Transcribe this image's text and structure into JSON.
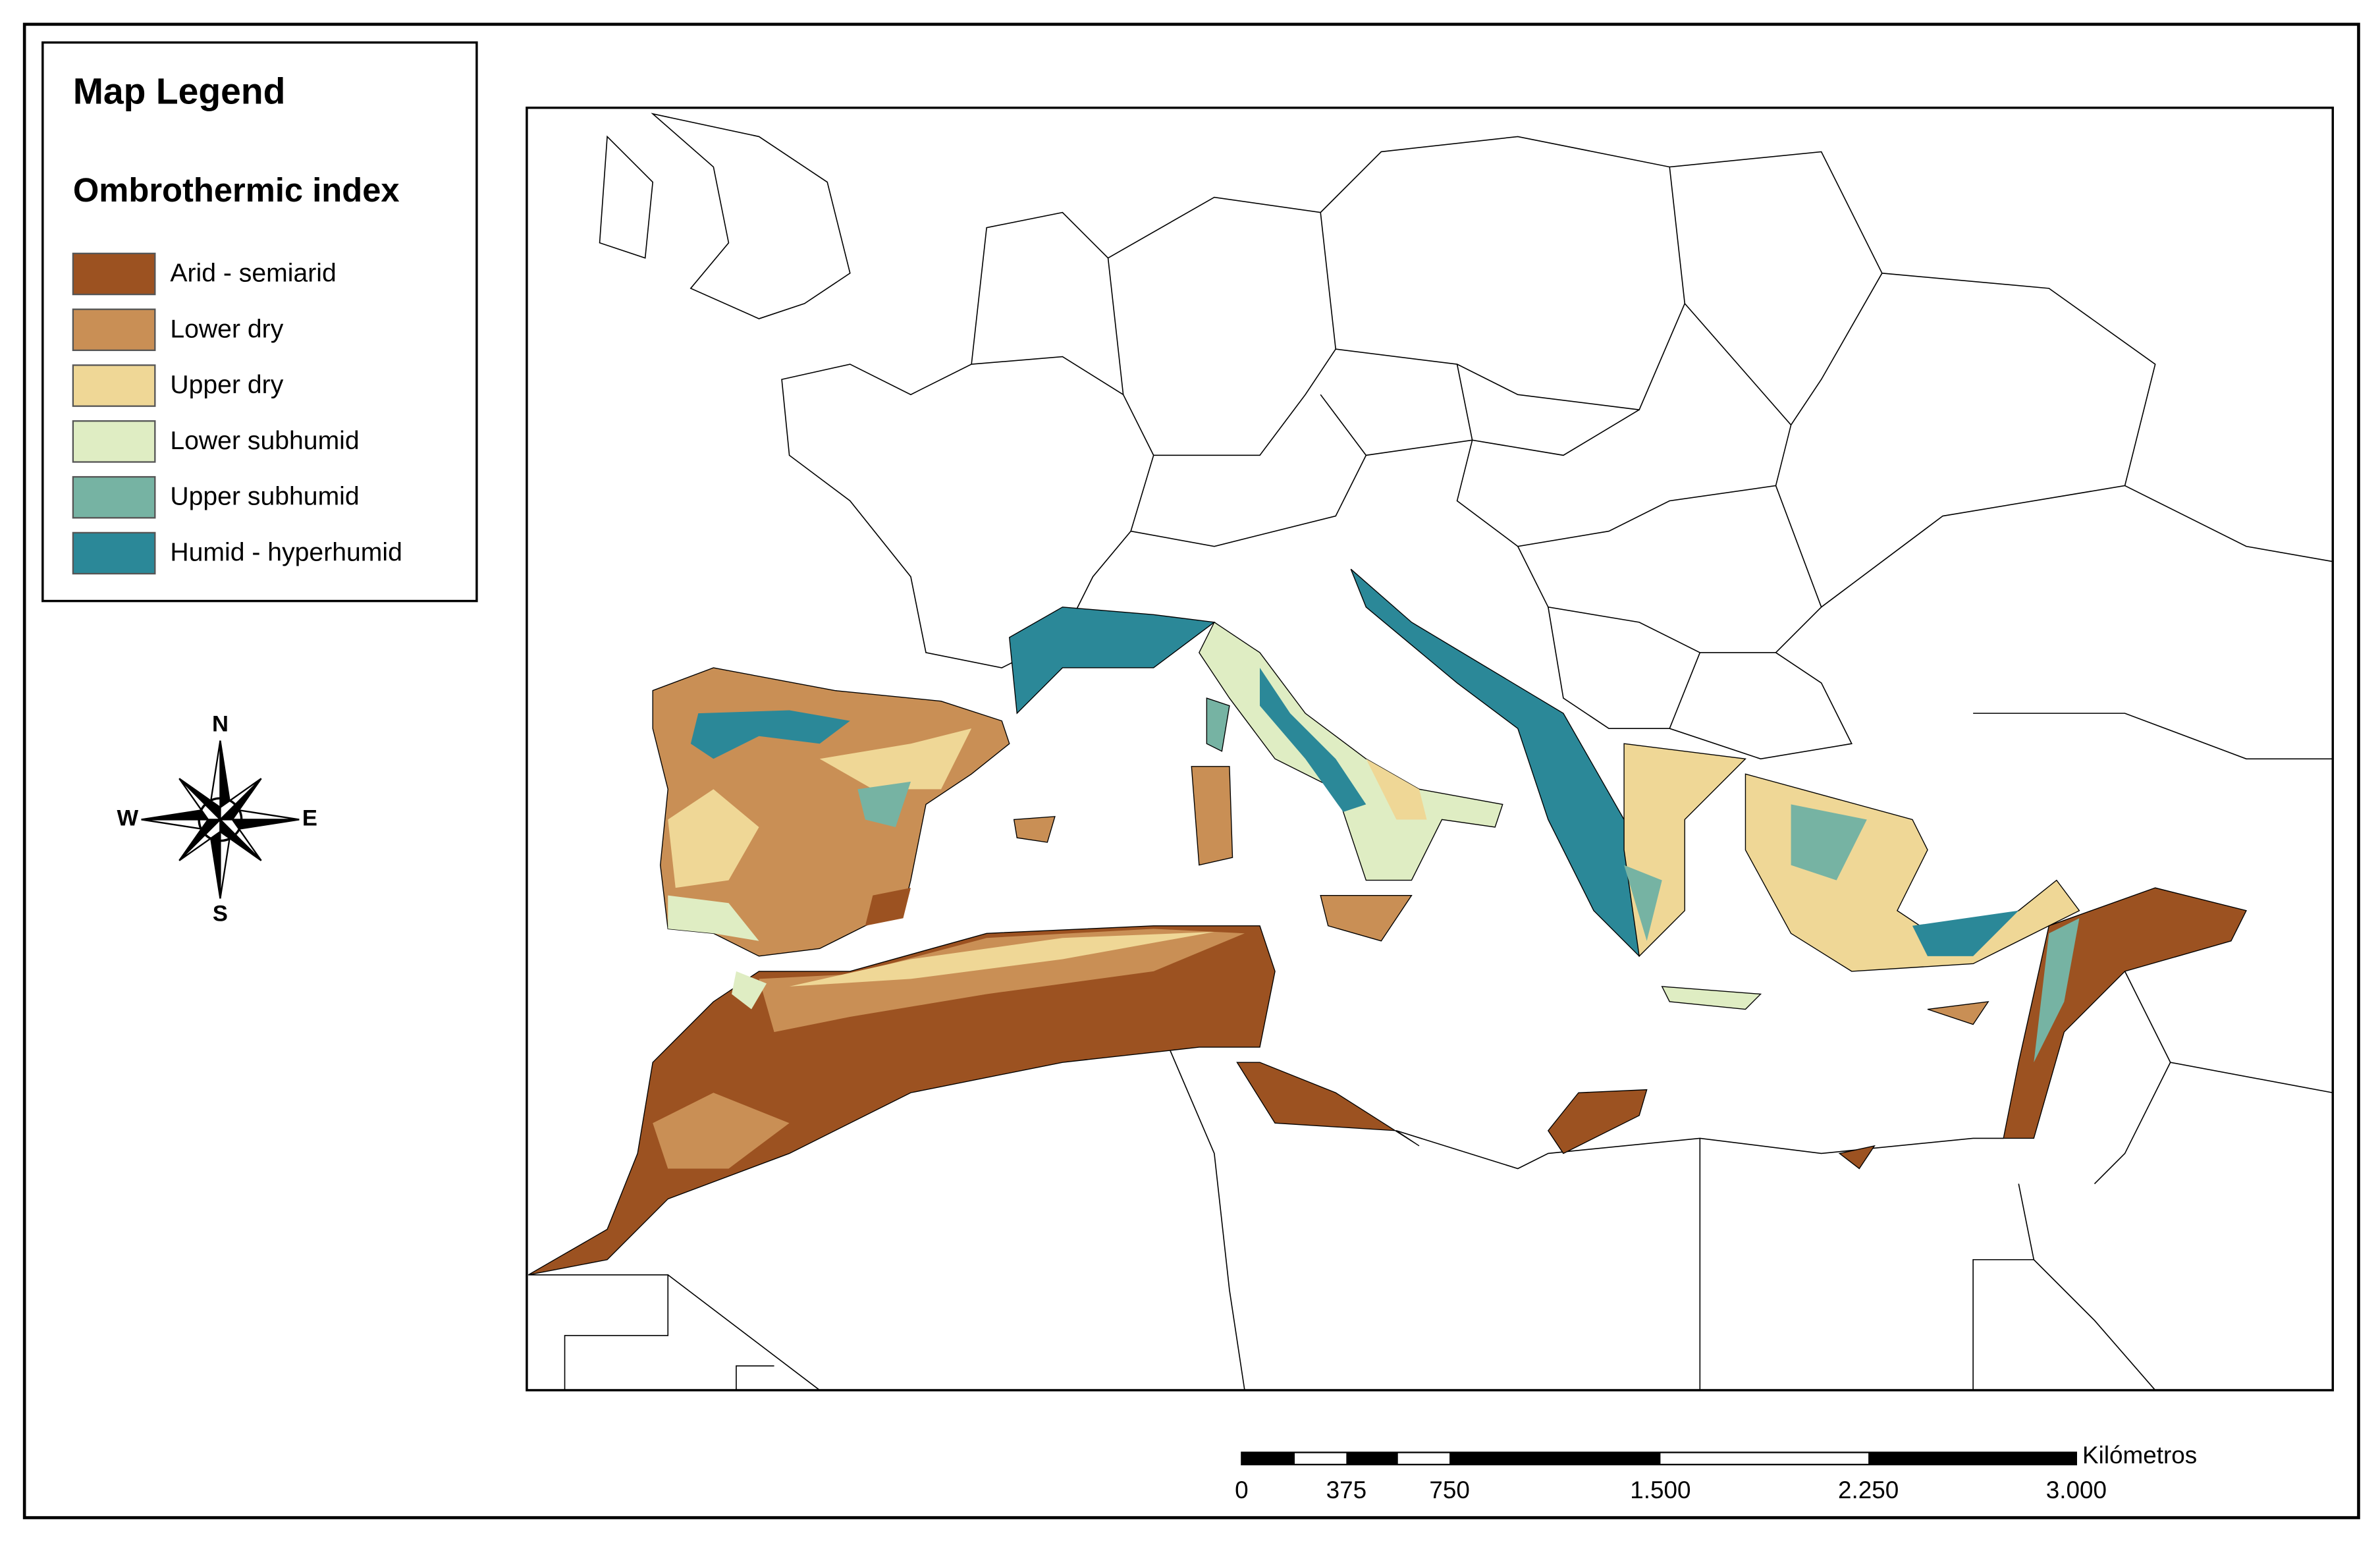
{
  "legend": {
    "title": "Map Legend",
    "subtitle": "Ombrothermic index",
    "items": [
      {
        "label": "Arid - semiarid",
        "color": "#9c5221"
      },
      {
        "label": "Lower dry",
        "color": "#c98f55"
      },
      {
        "label": "Upper dry",
        "color": "#efd796"
      },
      {
        "label": "Lower subhumid",
        "color": "#dfedc3"
      },
      {
        "label": "Upper subhumid",
        "color": "#76b3a3"
      },
      {
        "label": "Humid - hyperhumid",
        "color": "#2b8898"
      }
    ]
  },
  "compass": {
    "north": "N",
    "south": "S",
    "east": "E",
    "west": "W"
  },
  "scale_bar": {
    "unit": "Kilómetros",
    "labels": [
      "0",
      "375",
      "750",
      "1.500",
      "2.250",
      "3.000"
    ]
  }
}
